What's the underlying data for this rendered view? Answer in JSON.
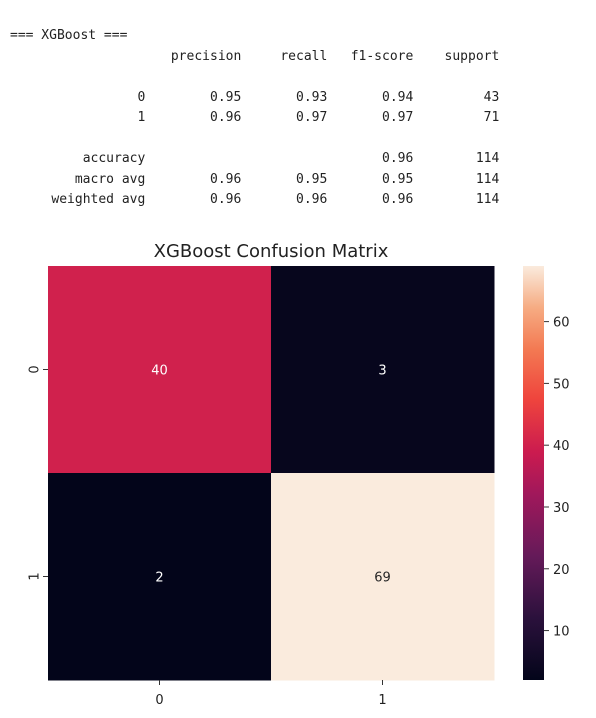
{
  "report": {
    "header": "=== XGBoost ===",
    "columns": [
      "precision",
      "recall",
      "f1-score",
      "support"
    ],
    "class_rows": [
      {
        "label": "0",
        "precision": "0.95",
        "recall": "0.93",
        "f1": "0.94",
        "support": "43"
      },
      {
        "label": "1",
        "precision": "0.96",
        "recall": "0.97",
        "f1": "0.97",
        "support": "71"
      }
    ],
    "summary_rows": [
      {
        "label": "accuracy",
        "precision": "",
        "recall": "",
        "f1": "0.96",
        "support": "114"
      },
      {
        "label": "macro avg",
        "precision": "0.96",
        "recall": "0.95",
        "f1": "0.95",
        "support": "114"
      },
      {
        "label": "weighted avg",
        "precision": "0.96",
        "recall": "0.96",
        "f1": "0.96",
        "support": "114"
      }
    ]
  },
  "chart_data": {
    "type": "heatmap",
    "title": "XGBoost Confusion Matrix",
    "xlabel": "",
    "ylabel": "",
    "x_categories": [
      "0",
      "1"
    ],
    "y_categories": [
      "0",
      "1"
    ],
    "values": [
      [
        40,
        3
      ],
      [
        2,
        69
      ]
    ],
    "colormap": "rocket",
    "colorbar": {
      "min": 2,
      "max": 69,
      "ticks": [
        10,
        20,
        30,
        40,
        50,
        60
      ]
    },
    "annotations": true
  }
}
